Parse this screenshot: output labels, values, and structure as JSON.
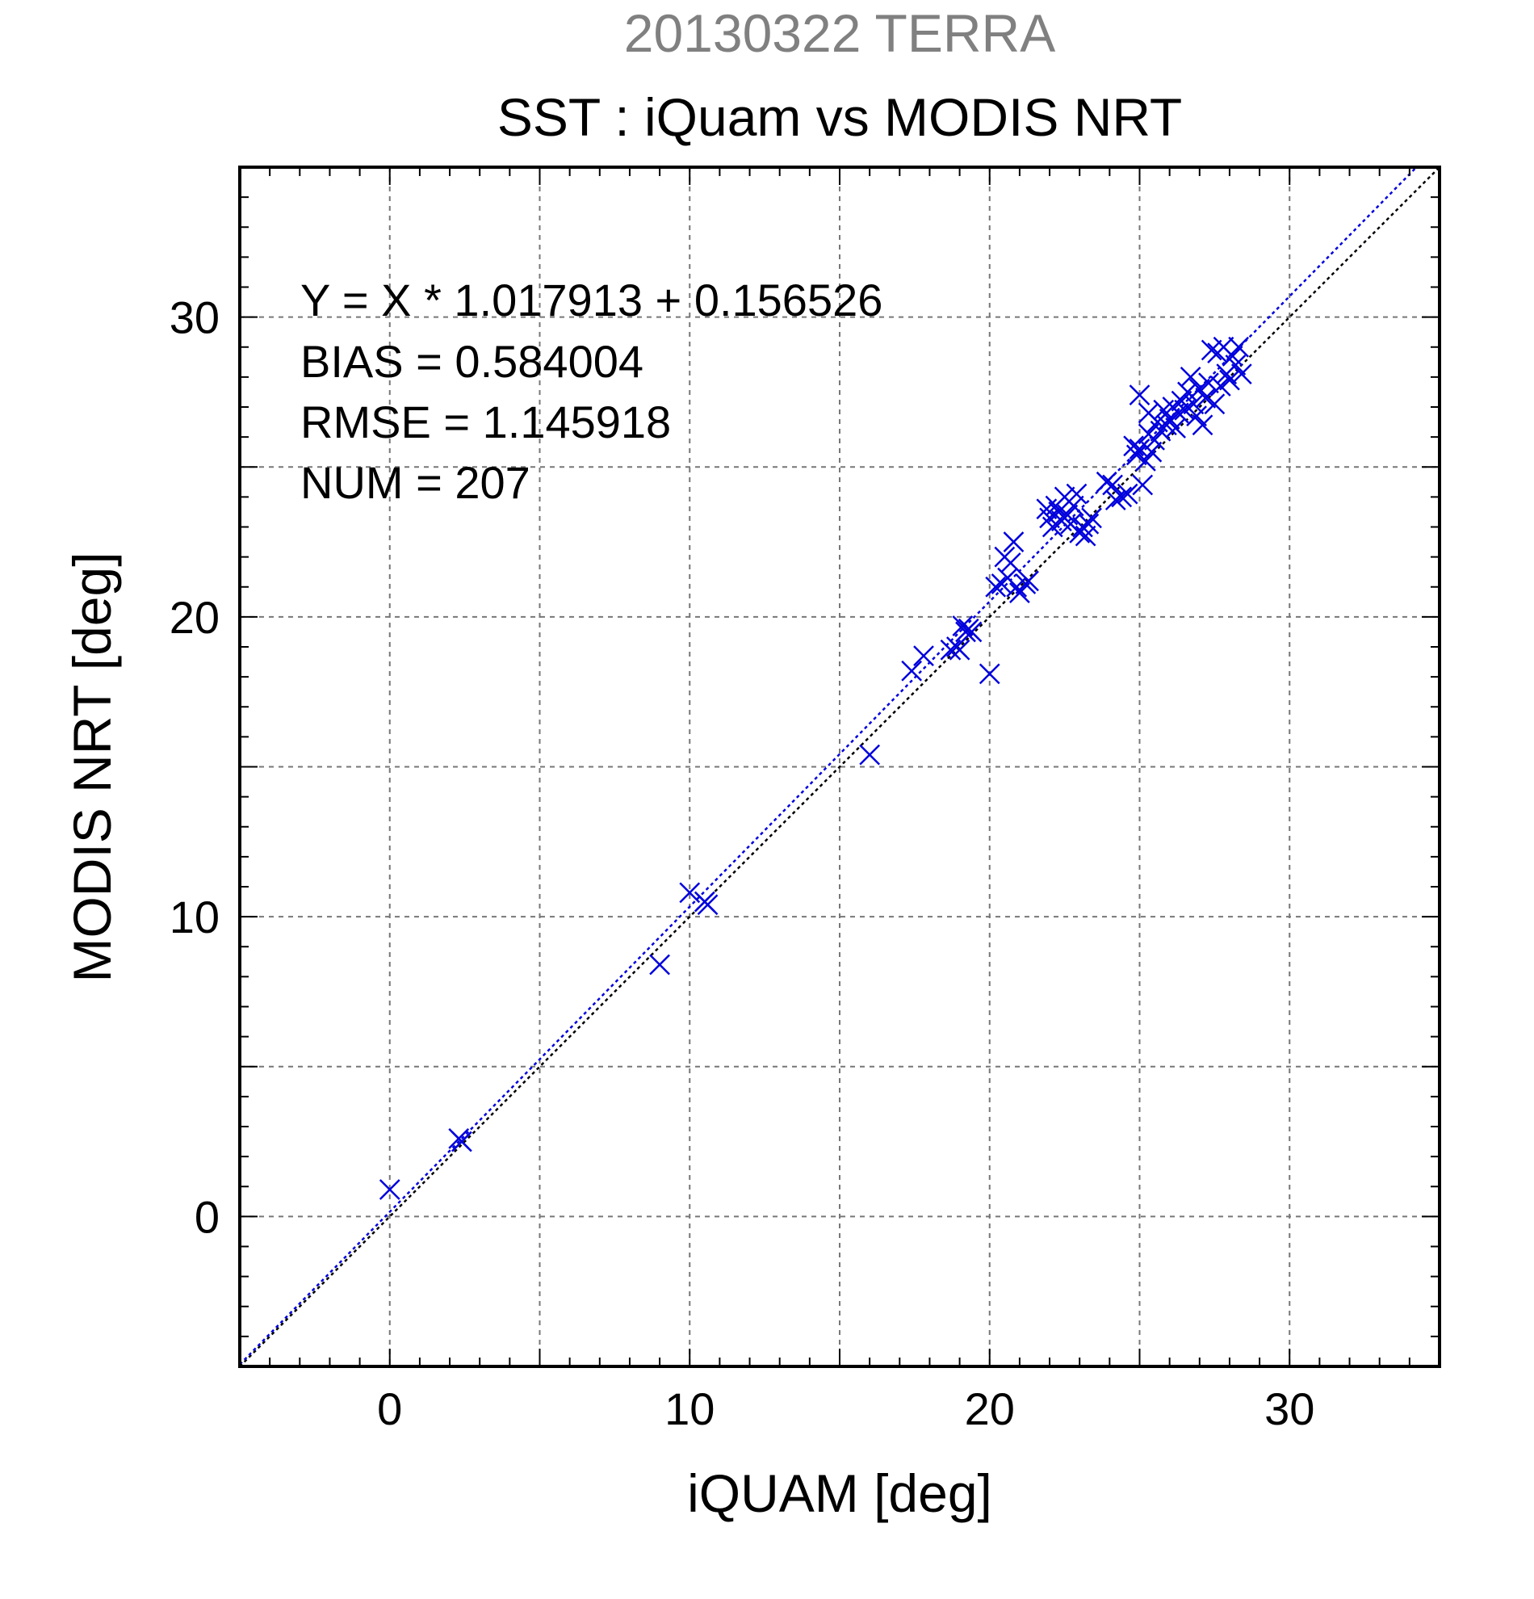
{
  "chart_data": {
    "type": "scatter",
    "suptitle": "20130322 TERRA",
    "title": "SST : iQuam vs MODIS NRT",
    "xlabel": "iQUAM [deg]",
    "ylabel": "MODIS NRT [deg]",
    "xlim": [
      -5,
      35
    ],
    "ylim": [
      -5,
      35
    ],
    "xticks": [
      0,
      10,
      20,
      30
    ],
    "yticks": [
      0,
      10,
      20,
      30
    ],
    "grid": true,
    "stats": {
      "equation": "Y = X * 1.017913 + 0.156526",
      "bias": "BIAS = 0.584004",
      "rmse": "RMSE = 1.145918",
      "num": "NUM = 207"
    },
    "fit": {
      "slope": 1.017913,
      "intercept": 0.156526
    },
    "colors": {
      "points": "#0000dd",
      "fit_line": "#0000dd",
      "one_to_one": "#000000",
      "suptitle": "#808080",
      "grid": "#777777"
    },
    "series": [
      {
        "marker": "x",
        "points": [
          [
            0.0,
            0.9
          ],
          [
            2.3,
            2.6
          ],
          [
            2.4,
            2.5
          ],
          [
            9.0,
            8.4
          ],
          [
            10.0,
            10.8
          ],
          [
            10.5,
            10.5
          ],
          [
            10.6,
            10.4
          ],
          [
            16.0,
            15.4
          ],
          [
            17.4,
            18.2
          ],
          [
            17.8,
            18.7
          ],
          [
            18.7,
            18.9
          ],
          [
            18.9,
            19.0
          ],
          [
            19.0,
            18.9
          ],
          [
            19.1,
            19.7
          ],
          [
            19.2,
            19.5
          ],
          [
            19.3,
            19.6
          ],
          [
            19.4,
            19.5
          ],
          [
            20.0,
            18.1
          ],
          [
            20.2,
            21.0
          ],
          [
            20.4,
            21.1
          ],
          [
            20.5,
            22.0
          ],
          [
            20.6,
            21.3
          ],
          [
            20.7,
            21.8
          ],
          [
            20.8,
            22.5
          ],
          [
            20.9,
            21.0
          ],
          [
            21.0,
            20.8
          ],
          [
            21.2,
            21.1
          ],
          [
            21.3,
            21.2
          ],
          [
            21.9,
            23.6
          ],
          [
            22.0,
            23.3
          ],
          [
            22.1,
            23.0
          ],
          [
            22.2,
            23.7
          ],
          [
            22.3,
            23.5
          ],
          [
            22.4,
            23.2
          ],
          [
            22.5,
            24.0
          ],
          [
            22.6,
            23.4
          ],
          [
            22.7,
            23.1
          ],
          [
            22.8,
            23.7
          ],
          [
            22.9,
            24.1
          ],
          [
            23.0,
            22.8
          ],
          [
            23.1,
            23.0
          ],
          [
            23.2,
            22.7
          ],
          [
            23.3,
            23.1
          ],
          [
            23.4,
            23.3
          ],
          [
            23.9,
            24.5
          ],
          [
            24.1,
            24.4
          ],
          [
            24.2,
            23.9
          ],
          [
            24.4,
            24.0
          ],
          [
            24.6,
            24.1
          ],
          [
            24.8,
            25.7
          ],
          [
            24.9,
            25.4
          ],
          [
            25.0,
            25.6
          ],
          [
            25.0,
            27.4
          ],
          [
            25.1,
            24.4
          ],
          [
            25.2,
            25.2
          ],
          [
            25.3,
            26.1
          ],
          [
            25.3,
            26.8
          ],
          [
            25.4,
            25.5
          ],
          [
            25.5,
            25.9
          ],
          [
            25.6,
            26.5
          ],
          [
            25.7,
            26.2
          ],
          [
            25.8,
            26.9
          ],
          [
            25.9,
            26.4
          ],
          [
            26.0,
            26.6
          ],
          [
            26.1,
            27.0
          ],
          [
            26.2,
            26.3
          ],
          [
            26.3,
            26.8
          ],
          [
            26.4,
            27.2
          ],
          [
            26.5,
            26.9
          ],
          [
            26.6,
            27.5
          ],
          [
            26.7,
            28.0
          ],
          [
            26.8,
            27.1
          ],
          [
            26.9,
            26.7
          ],
          [
            27.0,
            27.6
          ],
          [
            27.1,
            26.4
          ],
          [
            27.2,
            27.3
          ],
          [
            27.3,
            27.8
          ],
          [
            27.4,
            28.9
          ],
          [
            27.5,
            27.1
          ],
          [
            27.6,
            28.8
          ],
          [
            27.7,
            27.7
          ],
          [
            27.8,
            29.0
          ],
          [
            27.9,
            28.1
          ],
          [
            28.0,
            27.9
          ],
          [
            28.1,
            28.7
          ],
          [
            28.2,
            28.4
          ],
          [
            28.3,
            29.0
          ],
          [
            28.4,
            28.1
          ]
        ]
      }
    ]
  }
}
